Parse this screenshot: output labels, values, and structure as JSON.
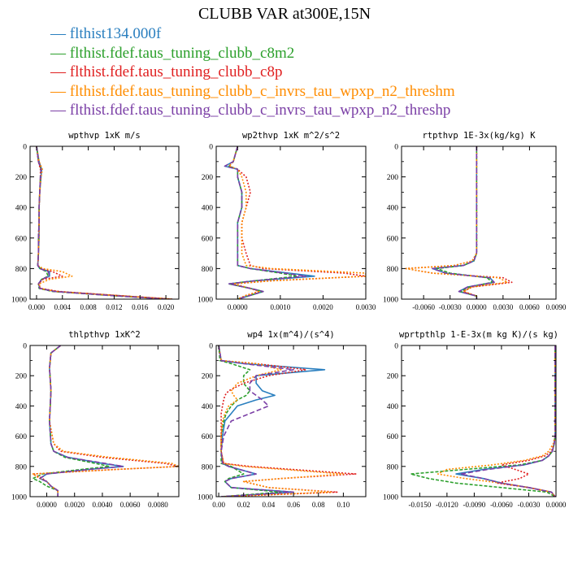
{
  "title": "CLUBB VAR at300E,15N",
  "legend": [
    {
      "name": "flthist134.000f",
      "color": "#2a7fbf"
    },
    {
      "name": "flthist.fdef.taus_tuning_clubb_c8m2",
      "color": "#2ca02c"
    },
    {
      "name": "flthist.fdef.taus_tuning_clubb_c8p",
      "color": "#e02020"
    },
    {
      "name": "flthist.fdef.taus_tuning_clubb_c_invrs_tau_wpxp_n2_threshm",
      "color": "#ff8c00"
    },
    {
      "name": "flthist.fdef.taus_tuning_clubb_c_invrs_tau_wpxp_n2_threshp",
      "color": "#7b3fa6"
    }
  ],
  "chart_data": [
    {
      "type": "line",
      "title": "wpthvp   1xK m/s",
      "xlim": [
        -0.001,
        0.022
      ],
      "ylim": [
        0,
        1000
      ],
      "y_reversed": true,
      "xticks": [
        "0.000",
        "0.004",
        "0.008",
        "0.012",
        "0.016",
        "0.020"
      ],
      "xtick_values": [
        0,
        0.004,
        0.008,
        0.012,
        0.016,
        0.02
      ],
      "yticks": [
        0,
        200,
        400,
        600,
        800,
        1000
      ],
      "y": [
        0,
        100,
        150,
        200,
        300,
        400,
        500,
        600,
        700,
        780,
        800,
        820,
        850,
        870,
        900,
        930,
        950,
        975,
        1000
      ],
      "series": [
        {
          "values": [
            0,
            0.0004,
            0.0008,
            0.0007,
            0.0005,
            0.0004,
            0.0004,
            0.0004,
            0.0003,
            0.0002,
            0.0005,
            0.002,
            0.002,
            0.0008,
            0.0003,
            0.0005,
            0.003,
            0.012,
            0.021
          ]
        },
        {
          "values": [
            0,
            0.0003,
            0.0007,
            0.0006,
            0.0005,
            0.0004,
            0.0004,
            0.0003,
            0.0003,
            0.0002,
            0.0006,
            0.0015,
            0.0018,
            0.0008,
            0.0003,
            0.0004,
            0.0025,
            0.011,
            0.02
          ]
        },
        {
          "values": [
            0,
            0.0003,
            0.0006,
            0.0006,
            0.0005,
            0.0004,
            0.0004,
            0.0003,
            0.0003,
            0.0002,
            0.0007,
            0.0025,
            0.004,
            0.001,
            0.0003,
            0.0006,
            0.0035,
            0.012,
            0.021
          ]
        },
        {
          "values": [
            0,
            0.0004,
            0.0009,
            0.0007,
            0.0005,
            0.0004,
            0.0004,
            0.0004,
            0.0003,
            0.0002,
            0.001,
            0.004,
            0.0055,
            0.002,
            0.0004,
            0.0006,
            0.003,
            0.012,
            0.021
          ]
        },
        {
          "values": [
            0,
            0.0003,
            0.0007,
            0.0006,
            0.0005,
            0.0004,
            0.0004,
            0.0003,
            0.0003,
            0.0002,
            0.0005,
            0.0018,
            0.002,
            0.0008,
            0.0003,
            0.0005,
            0.0028,
            0.011,
            0.02
          ]
        }
      ]
    },
    {
      "type": "line",
      "title": "wp2thvp   1xK m^2/s^2",
      "xlim": [
        -0.0005,
        0.003
      ],
      "ylim": [
        0,
        1000
      ],
      "y_reversed": true,
      "xticks": [
        "0.0000",
        "0.0010",
        "0.0020",
        "0.0030"
      ],
      "xtick_values": [
        0,
        0.001,
        0.002,
        0.003
      ],
      "yticks": [
        0,
        200,
        400,
        600,
        800,
        1000
      ],
      "y": [
        0,
        100,
        130,
        150,
        200,
        300,
        400,
        500,
        600,
        700,
        780,
        800,
        830,
        850,
        880,
        900,
        930,
        950,
        975,
        1000
      ],
      "series": [
        {
          "values": [
            0,
            -0.0001,
            -0.0003,
            0.0,
            0.0,
            0.0001,
            0.0001,
            0.0,
            0.0,
            0.0,
            0.0,
            0.0003,
            0.0012,
            0.0018,
            0.0004,
            -0.0002,
            0.0003,
            0.0006,
            0.0003,
            0.0
          ]
        },
        {
          "values": [
            0,
            -0.0001,
            -0.0002,
            0.0,
            0.0,
            0.0001,
            0.0001,
            0.0,
            0.0,
            0.0,
            0.0,
            0.0003,
            0.001,
            0.0014,
            0.0004,
            -0.0002,
            0.0003,
            0.0006,
            0.0003,
            0.0
          ]
        },
        {
          "values": [
            0,
            -0.0001,
            -0.0002,
            0.0,
            0.0002,
            0.0003,
            0.0002,
            0.0001,
            0.0001,
            0.0002,
            0.0003,
            0.0006,
            0.0025,
            0.003,
            0.0008,
            -0.0001,
            0.0003,
            0.0005,
            0.0002,
            0.0
          ]
        },
        {
          "values": [
            0,
            -0.0001,
            -0.0002,
            0.0,
            0.0001,
            0.0002,
            0.0002,
            0.0001,
            0.0001,
            0.0001,
            0.0002,
            0.0008,
            0.003,
            0.003,
            0.0008,
            -0.0001,
            0.0003,
            0.0005,
            0.0002,
            0.0
          ]
        },
        {
          "values": [
            0,
            -0.0001,
            -0.0003,
            0.0,
            0.0,
            0.0001,
            0.0001,
            0.0,
            0.0,
            0.0,
            0.0,
            0.0003,
            0.0011,
            0.0016,
            0.0004,
            -0.0002,
            0.0003,
            0.0006,
            0.0003,
            0.0
          ]
        }
      ]
    },
    {
      "type": "line",
      "title": "rtpthvp   1E-3x(kg/kg) K",
      "xlim": [
        -0.0085,
        0.009
      ],
      "ylim": [
        0,
        1000
      ],
      "y_reversed": true,
      "xticks": [
        "-0.0060",
        "-0.0030",
        "0.0000",
        "0.0030",
        "0.0060",
        "0.0090"
      ],
      "xtick_values": [
        -0.006,
        -0.003,
        0,
        0.003,
        0.006,
        0.009
      ],
      "yticks": [
        0,
        200,
        400,
        600,
        800,
        1000
      ],
      "y": [
        0,
        200,
        400,
        600,
        700,
        750,
        780,
        800,
        830,
        860,
        890,
        920,
        950,
        980,
        1000
      ],
      "series": [
        {
          "values": [
            0,
            0,
            0,
            0,
            0,
            -0.0003,
            -0.0015,
            -0.005,
            -0.0035,
            0.0015,
            0.002,
            -0.001,
            -0.002,
            0.0,
            0.0
          ]
        },
        {
          "values": [
            0,
            0,
            0,
            0,
            0,
            -0.0003,
            -0.0015,
            -0.0045,
            -0.003,
            0.0012,
            0.0018,
            -0.0008,
            -0.0018,
            0.0,
            0.0
          ]
        },
        {
          "values": [
            0,
            0,
            0,
            0,
            0,
            -0.0005,
            -0.0025,
            -0.008,
            -0.005,
            0.003,
            0.004,
            -0.0005,
            -0.0015,
            0.0,
            0.0
          ]
        },
        {
          "values": [
            0,
            0,
            0,
            0,
            0,
            -0.0005,
            -0.0025,
            -0.008,
            -0.005,
            0.0025,
            0.0035,
            -0.0005,
            -0.0015,
            0.0,
            0.0
          ]
        },
        {
          "values": [
            0,
            0,
            0,
            0,
            0,
            -0.0003,
            -0.0015,
            -0.005,
            -0.0035,
            0.0015,
            0.002,
            -0.001,
            -0.002,
            0.0,
            0.0
          ]
        }
      ]
    },
    {
      "type": "line",
      "title": "thlpthvp   1xK^2",
      "xlim": [
        -0.0012,
        0.0095
      ],
      "ylim": [
        0,
        1000
      ],
      "y_reversed": true,
      "xticks": [
        "0.0000",
        "0.0020",
        "0.0040",
        "0.0060",
        "0.0080"
      ],
      "xtick_values": [
        0,
        0.002,
        0.004,
        0.006,
        0.008
      ],
      "yticks": [
        0,
        200,
        400,
        600,
        800,
        1000
      ],
      "y": [
        0,
        50,
        150,
        300,
        500,
        650,
        700,
        740,
        780,
        800,
        820,
        850,
        880,
        900,
        930,
        960,
        1000
      ],
      "series": [
        {
          "values": [
            0.001,
            0.0003,
            0.0002,
            0.0003,
            0.0002,
            0.0003,
            0.0005,
            0.0015,
            0.004,
            0.0055,
            0.003,
            0.0,
            -0.0005,
            0.0,
            0.0003,
            0.0008,
            0.0008
          ]
        },
        {
          "values": [
            0.001,
            0.0003,
            0.0002,
            0.0003,
            0.0002,
            0.0003,
            0.0005,
            0.0013,
            0.0035,
            0.0045,
            0.0025,
            -0.0003,
            -0.001,
            -0.0005,
            0.0,
            0.0008,
            0.0008
          ]
        },
        {
          "values": [
            0.001,
            0.0003,
            0.0002,
            0.0003,
            0.0002,
            0.0005,
            0.001,
            0.004,
            0.0085,
            0.0095,
            0.005,
            -0.001,
            -0.0003,
            0.0,
            0.0003,
            0.0008,
            0.0008
          ]
        },
        {
          "values": [
            0.001,
            0.0003,
            0.0002,
            0.0003,
            0.0002,
            0.0005,
            0.0012,
            0.0045,
            0.009,
            0.0095,
            0.005,
            -0.001,
            -0.0005,
            0.0,
            0.0003,
            0.0008,
            0.0008
          ]
        },
        {
          "values": [
            0.001,
            0.0003,
            0.0002,
            0.0003,
            0.0002,
            0.0003,
            0.0005,
            0.0015,
            0.0042,
            0.0055,
            0.003,
            0.0,
            -0.0005,
            0.0,
            0.0003,
            0.0008,
            0.0008
          ]
        }
      ]
    },
    {
      "type": "line",
      "title": "wp4   1x(m^4)/(s^4)",
      "xlim": [
        -0.002,
        0.118
      ],
      "ylim": [
        0,
        1000
      ],
      "y_reversed": true,
      "xticks": [
        "0.00",
        "0.02",
        "0.04",
        "0.06",
        "0.08",
        "0.10"
      ],
      "xtick_values": [
        0,
        0.02,
        0.04,
        0.06,
        0.08,
        0.1
      ],
      "yticks": [
        0,
        200,
        400,
        600,
        800,
        1000
      ],
      "y": [
        0,
        100,
        120,
        160,
        200,
        250,
        300,
        330,
        360,
        400,
        450,
        500,
        600,
        700,
        780,
        800,
        850,
        880,
        900,
        940,
        970,
        1000
      ],
      "series": [
        {
          "values": [
            0,
            0.002,
            0.02,
            0.085,
            0.03,
            0.03,
            0.035,
            0.045,
            0.03,
            0.015,
            0.01,
            0.005,
            0.003,
            0.002,
            0.003,
            0.008,
            0.03,
            0.01,
            0.005,
            0.01,
            0.06,
            0.002
          ]
        },
        {
          "values": [
            0,
            0.001,
            0.01,
            0.025,
            0.02,
            0.02,
            0.025,
            0.022,
            0.015,
            0.01,
            0.006,
            0.004,
            0.002,
            0.002,
            0.002,
            0.01,
            0.02,
            0.008,
            0.005,
            0.01,
            0.05,
            0.002
          ]
        },
        {
          "values": [
            0,
            0.002,
            0.03,
            0.07,
            0.04,
            0.02,
            0.008,
            0.005,
            0.004,
            0.003,
            0.002,
            0.002,
            0.002,
            0.002,
            0.004,
            0.025,
            0.11,
            0.05,
            0.02,
            0.04,
            0.095,
            0.002
          ]
        },
        {
          "values": [
            0,
            0.002,
            0.03,
            0.05,
            0.03,
            0.015,
            0.01,
            0.012,
            0.015,
            0.008,
            0.005,
            0.003,
            0.002,
            0.002,
            0.004,
            0.02,
            0.1,
            0.05,
            0.02,
            0.04,
            0.09,
            0.002
          ]
        },
        {
          "values": [
            0,
            0.002,
            0.02,
            0.06,
            0.03,
            0.025,
            0.025,
            0.03,
            0.035,
            0.04,
            0.025,
            0.01,
            0.004,
            0.002,
            0.003,
            0.008,
            0.03,
            0.01,
            0.005,
            0.01,
            0.06,
            0.002
          ]
        }
      ]
    },
    {
      "type": "line",
      "title": "wprtpthlp   1-E-3x(m kg K)/(s kg)",
      "xlim": [
        -0.017,
        0.0
      ],
      "ylim": [
        0,
        1000
      ],
      "y_reversed": true,
      "xticks": [
        "-0.0150",
        "-0.0120",
        "-0.0090",
        "-0.0060",
        "-0.0030",
        "0.0000"
      ],
      "xtick_values": [
        -0.015,
        -0.012,
        -0.009,
        -0.006,
        -0.003,
        0
      ],
      "yticks": [
        0,
        200,
        400,
        600,
        800,
        1000
      ],
      "y": [
        0,
        100,
        300,
        500,
        600,
        650,
        700,
        730,
        760,
        790,
        820,
        850,
        880,
        910,
        940,
        970,
        1000
      ],
      "series": [
        {
          "values": [
            -0.0001,
            -0.0001,
            -0.0001,
            -0.0001,
            -0.0001,
            -0.0002,
            -0.0004,
            -0.0008,
            -0.0015,
            -0.0035,
            -0.008,
            -0.011,
            -0.008,
            -0.006,
            -0.003,
            -0.0005,
            -0.0001
          ]
        },
        {
          "values": [
            -0.0001,
            -0.0001,
            -0.0001,
            -0.0001,
            -0.0001,
            -0.0002,
            -0.0004,
            -0.0008,
            -0.0015,
            -0.004,
            -0.01,
            -0.016,
            -0.014,
            -0.011,
            -0.006,
            -0.001,
            -0.0001
          ]
        },
        {
          "values": [
            -0.0001,
            -0.0001,
            -0.0001,
            -0.0001,
            -0.0001,
            -0.0002,
            -0.0005,
            -0.0012,
            -0.003,
            -0.006,
            -0.0045,
            -0.003,
            -0.004,
            -0.0065,
            -0.003,
            -0.0005,
            -0.0001
          ]
        },
        {
          "values": [
            -0.0001,
            -0.0001,
            -0.0001,
            -0.0001,
            -0.0001,
            -0.0003,
            -0.0008,
            -0.0015,
            -0.0035,
            -0.007,
            -0.012,
            -0.013,
            -0.01,
            -0.006,
            -0.003,
            -0.0005,
            -0.0001
          ]
        },
        {
          "values": [
            -0.0001,
            -0.0001,
            -0.0001,
            -0.0001,
            -0.0001,
            -0.0002,
            -0.0004,
            -0.0008,
            -0.0015,
            -0.0035,
            -0.0075,
            -0.0105,
            -0.008,
            -0.006,
            -0.003,
            -0.0005,
            -0.0001
          ]
        }
      ]
    }
  ]
}
